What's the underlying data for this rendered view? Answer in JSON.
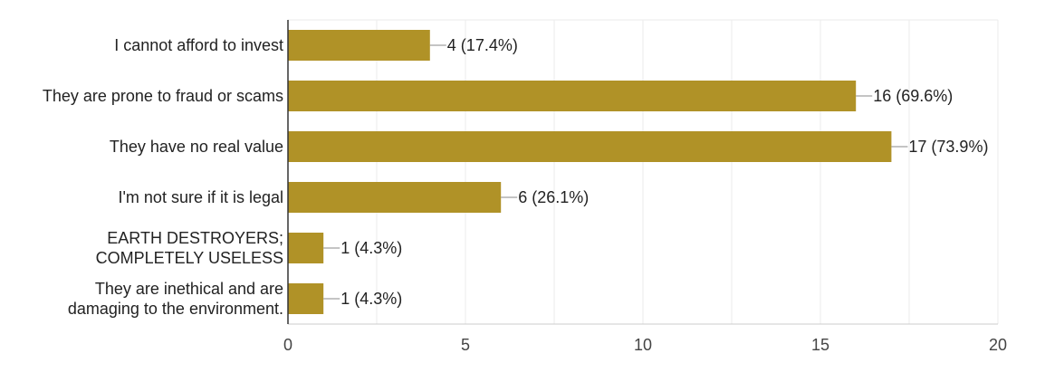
{
  "chart_data": {
    "type": "bar",
    "orientation": "horizontal",
    "categories": [
      [
        "I cannot afford to invest"
      ],
      [
        "They are prone to fraud or scams"
      ],
      [
        "They have no real value"
      ],
      [
        "I'm not sure if it is legal"
      ],
      [
        "EARTH DESTROYERS;",
        "COMPLETELY USELESS"
      ],
      [
        "They are inethical and are",
        "damaging to the environment."
      ]
    ],
    "values": [
      4,
      16,
      17,
      6,
      1,
      1
    ],
    "data_labels": [
      "4 (17.4%)",
      "16 (69.6%)",
      "17 (73.9%)",
      "6 (26.1%)",
      "1 (4.3%)",
      "1 (4.3%)"
    ],
    "xlim": [
      0,
      20
    ],
    "xticks": [
      "0",
      "5",
      "10",
      "15",
      "20"
    ],
    "grid": true,
    "bar_color": "#b09227",
    "title": "",
    "xlabel": "",
    "ylabel": ""
  }
}
